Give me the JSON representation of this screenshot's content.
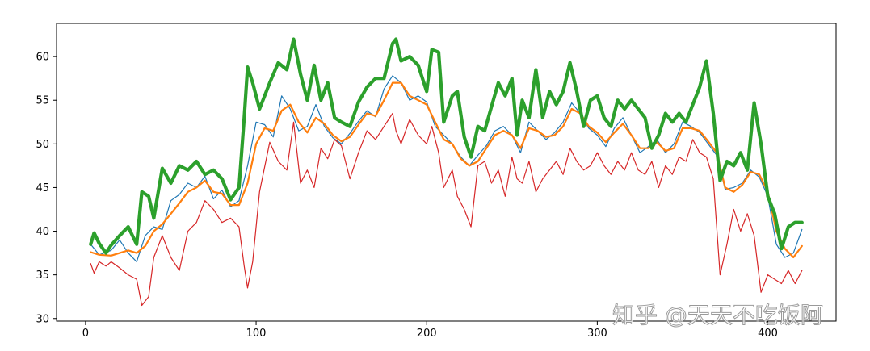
{
  "watermark": "知乎 @天天不吃饭阿",
  "chart_data": {
    "type": "line",
    "title": "",
    "xlabel": "",
    "ylabel": "",
    "xlim": [
      -17,
      440
    ],
    "ylim": [
      29.7,
      63.8
    ],
    "grid": false,
    "legend": "none",
    "x_ticks": [
      0,
      100,
      200,
      300,
      400
    ],
    "y_ticks": [
      30,
      35,
      40,
      45,
      50,
      55,
      60
    ],
    "x_ticks_labels": [
      "0",
      "100",
      "200",
      "300",
      "400"
    ],
    "y_ticks_labels": [
      "30",
      "35",
      "40",
      "45",
      "50",
      "55",
      "60"
    ],
    "series": [
      {
        "color": "#1f77b4",
        "width": 1.2,
        "x": [
          3,
          8,
          15,
          20,
          25,
          30,
          35,
          40,
          45,
          50,
          55,
          60,
          65,
          70,
          75,
          80,
          85,
          90,
          95,
          100,
          105,
          110,
          115,
          120,
          125,
          130,
          135,
          140,
          145,
          150,
          155,
          160,
          165,
          170,
          175,
          180,
          185,
          190,
          195,
          200,
          205,
          210,
          215,
          220,
          225,
          230,
          235,
          240,
          245,
          250,
          255,
          260,
          265,
          270,
          275,
          280,
          285,
          290,
          295,
          300,
          305,
          310,
          315,
          320,
          325,
          330,
          335,
          340,
          345,
          350,
          355,
          360,
          365,
          370,
          375,
          380,
          385,
          390,
          395,
          400,
          405,
          410,
          415,
          420
        ],
        "y": [
          38.5,
          37.3,
          37.8,
          39.0,
          37.5,
          36.5,
          39.5,
          40.5,
          40.2,
          43.5,
          44.2,
          45.5,
          45.0,
          46.3,
          43.7,
          44.7,
          42.8,
          43.5,
          47.5,
          52.5,
          52.2,
          50.8,
          55.5,
          54.0,
          51.5,
          52.0,
          54.5,
          52.0,
          50.7,
          50.0,
          51.2,
          52.6,
          53.8,
          53.1,
          56.3,
          57.8,
          57.0,
          55.0,
          55.5,
          54.8,
          52.0,
          51.0,
          50.0,
          48.5,
          47.5,
          48.7,
          49.8,
          51.5,
          52.0,
          51.0,
          49.0,
          52.5,
          51.5,
          50.5,
          51.3,
          52.5,
          54.7,
          53.5,
          51.8,
          51.0,
          49.7,
          51.8,
          53.0,
          51.0,
          49.0,
          49.7,
          50.5,
          49.0,
          50.0,
          52.5,
          52.0,
          51.3,
          50.0,
          48.7,
          44.8,
          45.0,
          45.5,
          47.0,
          46.2,
          44.0,
          38.5,
          37.0,
          37.5,
          40.2
        ]
      },
      {
        "color": "#ff7f0e",
        "width": 2.2,
        "x": [
          3,
          8,
          15,
          20,
          25,
          30,
          35,
          40,
          45,
          50,
          55,
          60,
          65,
          70,
          75,
          80,
          85,
          90,
          95,
          100,
          105,
          110,
          115,
          120,
          125,
          130,
          135,
          140,
          145,
          150,
          155,
          160,
          165,
          170,
          175,
          180,
          185,
          190,
          195,
          200,
          205,
          210,
          215,
          220,
          225,
          230,
          235,
          240,
          245,
          250,
          255,
          260,
          265,
          270,
          275,
          280,
          285,
          290,
          295,
          300,
          305,
          310,
          315,
          320,
          325,
          330,
          335,
          340,
          345,
          350,
          355,
          360,
          365,
          370,
          375,
          380,
          385,
          390,
          395,
          400,
          405,
          410,
          415,
          420
        ],
        "y": [
          37.6,
          37.3,
          37.2,
          37.5,
          37.8,
          37.5,
          38.3,
          40.0,
          40.8,
          42.0,
          43.2,
          44.5,
          45.0,
          45.8,
          44.5,
          44.3,
          43.0,
          43.0,
          45.5,
          50.0,
          51.8,
          51.5,
          53.8,
          54.5,
          52.5,
          51.3,
          53.0,
          52.3,
          51.0,
          50.3,
          50.8,
          52.2,
          53.5,
          53.2,
          55.0,
          57.0,
          57.0,
          55.5,
          55.0,
          54.5,
          52.5,
          50.5,
          50.0,
          48.3,
          47.5,
          48.0,
          49.5,
          51.0,
          51.5,
          51.0,
          49.5,
          51.8,
          51.5,
          50.8,
          51.0,
          52.0,
          54.0,
          53.5,
          52.0,
          51.3,
          50.2,
          51.3,
          52.3,
          51.0,
          49.5,
          49.5,
          50.2,
          49.2,
          49.5,
          51.8,
          51.8,
          51.5,
          50.3,
          49.0,
          45.0,
          44.5,
          45.3,
          46.8,
          46.5,
          44.5,
          40.0,
          38.0,
          37.0,
          38.3
        ]
      },
      {
        "color": "#2ca02c",
        "width": 4.2,
        "x": [
          3,
          5,
          8,
          12,
          15,
          20,
          25,
          30,
          33,
          37,
          40,
          45,
          50,
          55,
          60,
          65,
          70,
          75,
          80,
          85,
          90,
          93,
          95,
          98,
          102,
          108,
          113,
          118,
          122,
          126,
          130,
          134,
          138,
          142,
          146,
          150,
          155,
          160,
          165,
          170,
          175,
          180,
          182,
          185,
          190,
          195,
          200,
          203,
          207,
          210,
          215,
          218,
          222,
          226,
          230,
          234,
          238,
          242,
          246,
          250,
          253,
          256,
          260,
          264,
          268,
          272,
          276,
          280,
          284,
          288,
          292,
          296,
          300,
          304,
          308,
          312,
          316,
          320,
          324,
          328,
          332,
          336,
          340,
          344,
          348,
          352,
          356,
          360,
          364,
          368,
          372,
          376,
          380,
          384,
          388,
          392,
          396,
          400,
          404,
          408,
          412,
          416,
          420
        ],
        "y": [
          38.5,
          39.8,
          38.6,
          37.5,
          38.4,
          39.5,
          40.5,
          38.5,
          44.5,
          44.0,
          41.5,
          47.2,
          45.5,
          47.5,
          47.0,
          48.0,
          46.5,
          47.0,
          46.0,
          43.6,
          45.0,
          53.0,
          58.8,
          57.0,
          54.0,
          57.0,
          59.3,
          58.5,
          62.0,
          58.0,
          55.0,
          59.0,
          55.0,
          57.0,
          53.0,
          52.5,
          52.0,
          54.8,
          56.5,
          57.5,
          57.5,
          61.5,
          62.0,
          59.5,
          60.0,
          59.0,
          56.0,
          60.8,
          60.5,
          52.5,
          55.5,
          56.0,
          50.8,
          48.5,
          52.0,
          51.5,
          54.3,
          57.0,
          55.5,
          57.5,
          51.0,
          55.0,
          53.0,
          58.5,
          53.0,
          56.0,
          54.5,
          56.0,
          59.3,
          56.0,
          52.0,
          55.0,
          55.5,
          53.0,
          52.0,
          55.0,
          54.0,
          55.0,
          54.0,
          53.0,
          49.5,
          51.0,
          53.5,
          52.5,
          53.5,
          52.5,
          54.5,
          56.5,
          59.5,
          53.5,
          45.8,
          48.0,
          47.5,
          49.0,
          47.0,
          54.7,
          50.0,
          44.0,
          42.0,
          38.0,
          40.5,
          41.0,
          41.0
        ]
      },
      {
        "color": "#d62728",
        "width": 1.2,
        "x": [
          3,
          5,
          8,
          12,
          15,
          20,
          25,
          30,
          33,
          37,
          40,
          45,
          50,
          55,
          60,
          65,
          70,
          75,
          80,
          85,
          90,
          93,
          95,
          98,
          102,
          108,
          113,
          118,
          122,
          126,
          130,
          134,
          138,
          142,
          146,
          150,
          155,
          160,
          165,
          170,
          175,
          180,
          182,
          185,
          190,
          195,
          200,
          203,
          207,
          210,
          215,
          218,
          222,
          226,
          230,
          234,
          238,
          242,
          246,
          250,
          253,
          256,
          260,
          264,
          268,
          272,
          276,
          280,
          284,
          288,
          292,
          296,
          300,
          304,
          308,
          312,
          316,
          320,
          324,
          328,
          332,
          336,
          340,
          344,
          348,
          352,
          356,
          360,
          364,
          368,
          372,
          376,
          380,
          384,
          388,
          392,
          396,
          400,
          404,
          408,
          412,
          416,
          420
        ],
        "y": [
          36.3,
          35.2,
          36.5,
          36.0,
          36.5,
          35.8,
          35.0,
          34.5,
          31.5,
          32.5,
          37.0,
          39.5,
          37.0,
          35.5,
          40.0,
          41.0,
          43.5,
          42.5,
          41.0,
          41.5,
          40.5,
          36.0,
          33.5,
          36.5,
          44.5,
          50.2,
          48.0,
          47.0,
          52.5,
          45.5,
          47.0,
          45.0,
          49.5,
          48.3,
          50.5,
          49.8,
          46.0,
          49.0,
          51.5,
          50.5,
          52.0,
          53.5,
          51.5,
          50.0,
          52.8,
          51.0,
          50.0,
          52.0,
          49.0,
          45.0,
          47.0,
          44.0,
          42.5,
          40.5,
          47.5,
          48.0,
          45.5,
          47.0,
          44.0,
          48.5,
          46.0,
          45.5,
          48.0,
          44.5,
          46.0,
          47.0,
          48.0,
          46.5,
          49.5,
          48.0,
          47.0,
          47.5,
          49.0,
          47.5,
          46.5,
          48.0,
          47.0,
          49.0,
          47.0,
          46.5,
          48.0,
          45.0,
          47.5,
          46.5,
          48.5,
          48.0,
          50.5,
          49.0,
          48.5,
          46.0,
          35.0,
          38.5,
          42.5,
          40.0,
          42.0,
          39.5,
          33.0,
          35.0,
          34.5,
          34.0,
          35.5,
          34.0,
          35.5
        ]
      }
    ]
  }
}
